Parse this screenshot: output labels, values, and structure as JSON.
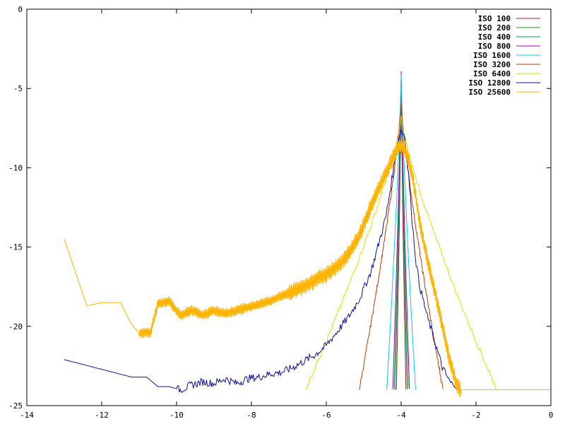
{
  "chart_data": {
    "type": "line",
    "title": "",
    "xlabel": "",
    "ylabel": "",
    "xlim": [
      -14,
      0
    ],
    "ylim": [
      -25,
      0
    ],
    "x_ticks": [
      -14,
      -12,
      -10,
      -8,
      -6,
      -4,
      -2,
      0
    ],
    "y_ticks": [
      0,
      -5,
      -10,
      -15,
      -20,
      -25
    ],
    "grid": false,
    "legend_position": "top-right",
    "series": [
      {
        "name": "ISO 100",
        "color": "#b22222",
        "peak_x": -4.0,
        "peak_y": -4.6,
        "half_width": 0.04,
        "floor_y": -24.0
      },
      {
        "name": "ISO 200",
        "color": "#1a9a1a",
        "peak_x": -4.0,
        "peak_y": -4.2,
        "half_width": 0.05,
        "floor_y": -24.0
      },
      {
        "name": "ISO 400",
        "color": "#009a7a",
        "peak_x": -4.0,
        "peak_y": -4.9,
        "half_width": 0.06,
        "floor_y": -24.0
      },
      {
        "name": "ISO 800",
        "color": "#b000c0",
        "peak_x": -4.0,
        "peak_y": -3.8,
        "half_width": 0.07,
        "floor_y": -24.0
      },
      {
        "name": "ISO 1600",
        "color": "#00d0e0",
        "peak_x": -4.0,
        "peak_y": -4.1,
        "half_width": 0.12,
        "floor_y": -24.0
      },
      {
        "name": "ISO 3200",
        "color": "#c03a00",
        "peak_x": -4.0,
        "peak_y": -5.9,
        "half_width": 0.35,
        "floor_y": -24.0
      },
      {
        "name": "ISO 6400",
        "color": "#e0e000",
        "peak_x": -4.0,
        "peak_y": -6.8,
        "half_width": 0.8,
        "floor_y": -24.0
      },
      {
        "name": "ISO 12800",
        "color": "#1010a0",
        "x": [
          -13,
          -11.2,
          -10.8,
          -10.5,
          -10.2,
          -9.9,
          -9.6,
          -9.3,
          -9.0,
          -8.7,
          -8.4,
          -8.1,
          -7.8,
          -7.5,
          -7.2,
          -6.9,
          -6.6,
          -6.3,
          -6.0,
          -5.7,
          -5.4,
          -5.1,
          -4.8,
          -4.6,
          -4.4,
          -4.3,
          -4.2,
          -4.1,
          -4.0,
          -3.9,
          -3.8,
          -3.7,
          -3.6,
          -3.5,
          -3.3,
          -3.1,
          -2.9,
          -2.7,
          -2.5
        ],
        "y": [
          -22.1,
          -23.2,
          -23.2,
          -23.8,
          -23.8,
          -24.0,
          -23.7,
          -23.5,
          -23.6,
          -23.3,
          -23.6,
          -23.3,
          -23.2,
          -23.0,
          -22.9,
          -22.6,
          -22.2,
          -21.8,
          -21.2,
          -20.3,
          -19.4,
          -18.2,
          -16.5,
          -14.8,
          -13.0,
          -11.5,
          -10.0,
          -8.5,
          -7.6,
          -8.0,
          -10.5,
          -13.5,
          -16.0,
          -17.5,
          -19.4,
          -21.0,
          -22.6,
          -23.5,
          -24.0
        ]
      },
      {
        "name": "ISO 25600",
        "color": "#ffb300",
        "x": [
          -13,
          -12.4,
          -12.0,
          -11.5,
          -11.2,
          -11.0,
          -10.7,
          -10.5,
          -10.2,
          -9.9,
          -9.6,
          -9.3,
          -9.0,
          -8.7,
          -8.4,
          -8.1,
          -7.8,
          -7.5,
          -7.2,
          -6.9,
          -6.6,
          -6.3,
          -6.0,
          -5.7,
          -5.4,
          -5.1,
          -4.9,
          -4.7,
          -4.5,
          -4.3,
          -4.2,
          -4.1,
          -4.0,
          -3.9,
          -3.8,
          -3.7,
          -3.6,
          -3.5,
          -3.3,
          -3.1,
          -2.9,
          -2.7,
          -2.5,
          -2.4,
          0
        ],
        "y": [
          -14.5,
          -18.7,
          -18.5,
          -18.5,
          -19.9,
          -20.4,
          -20.4,
          -18.6,
          -18.4,
          -19.3,
          -19.0,
          -19.3,
          -19.0,
          -19.2,
          -19.0,
          -18.8,
          -18.6,
          -18.4,
          -18.1,
          -17.8,
          -17.5,
          -17.1,
          -16.7,
          -16.2,
          -15.4,
          -14.2,
          -13.0,
          -11.8,
          -10.8,
          -9.8,
          -9.3,
          -8.8,
          -8.6,
          -8.8,
          -9.5,
          -10.5,
          -12.0,
          -13.5,
          -15.8,
          -17.8,
          -20.0,
          -22.2,
          -23.8,
          -24.0,
          -24.0
        ]
      }
    ]
  }
}
